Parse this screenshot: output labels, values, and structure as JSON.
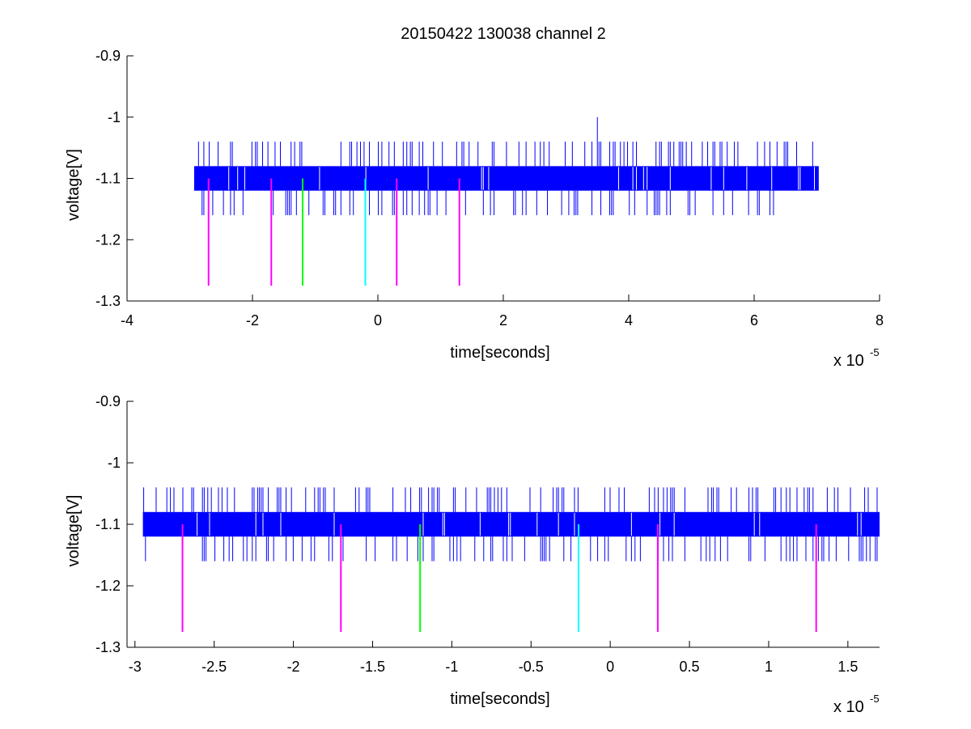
{
  "figure": {
    "title": "20150422 130038 channel 2"
  },
  "chart_data": [
    {
      "type": "line",
      "title": "20150422 130038 channel 2",
      "xlabel": "time[seconds]",
      "ylabel": "voltage[V]",
      "x_multiplier": "x 10",
      "x_multiplier_exp": "-5",
      "xlim": [
        -4,
        8
      ],
      "ylim": [
        -1.3,
        -0.9
      ],
      "xticks": [
        -4,
        -2,
        0,
        2,
        4,
        6,
        8
      ],
      "xtick_labels": [
        "-4",
        "-2",
        "0",
        "2",
        "4",
        "6",
        "8"
      ],
      "yticks": [
        -1.3,
        -1.2,
        -1.1,
        -1.0,
        -0.9
      ],
      "ytick_labels": [
        "-1.3",
        "-1.2",
        "-1.1",
        "-1",
        "-0.9"
      ],
      "grid": false,
      "series": [
        {
          "color": "#0000ff",
          "x_range": [
            -2.93,
            7.03
          ],
          "band": [
            -1.12,
            -1.08
          ],
          "spikes_up": [
            -1.04,
            -1.0
          ],
          "spikes_down": [
            -1.16
          ],
          "peak": {
            "x": 3.5,
            "y": -1.0
          }
        }
      ],
      "markers": [
        {
          "x": -2.7,
          "y_top": -1.1,
          "y_bottom": -1.275,
          "color": "#ff00ff"
        },
        {
          "x": -1.7,
          "y_top": -1.1,
          "y_bottom": -1.275,
          "color": "#ff00ff"
        },
        {
          "x": -1.2,
          "y_top": -1.1,
          "y_bottom": -1.275,
          "color": "#00ff00"
        },
        {
          "x": -0.2,
          "y_top": -1.1,
          "y_bottom": -1.275,
          "color": "#00ffff"
        },
        {
          "x": 0.3,
          "y_top": -1.1,
          "y_bottom": -1.275,
          "color": "#ff00ff"
        },
        {
          "x": 1.3,
          "y_top": -1.1,
          "y_bottom": -1.275,
          "color": "#ff00ff"
        }
      ]
    },
    {
      "type": "line",
      "title": "",
      "xlabel": "time[seconds]",
      "ylabel": "voltage[V]",
      "x_multiplier": "x 10",
      "x_multiplier_exp": "-5",
      "xlim": [
        -3.05,
        1.7
      ],
      "ylim": [
        -1.3,
        -0.9
      ],
      "xticks": [
        -3,
        -2.5,
        -2,
        -1.5,
        -1,
        -0.5,
        0,
        0.5,
        1,
        1.5
      ],
      "xtick_labels": [
        "-3",
        "-2.5",
        "-2",
        "-1.5",
        "-1",
        "-0.5",
        "0",
        "0.5",
        "1",
        "1.5"
      ],
      "yticks": [
        -1.3,
        -1.2,
        -1.1,
        -1.0,
        -0.9
      ],
      "ytick_labels": [
        "-1.3",
        "-1.2",
        "-1.1",
        "-1",
        "-0.9"
      ],
      "grid": false,
      "series": [
        {
          "color": "#0000ff",
          "x_range": [
            -2.95,
            1.7
          ],
          "band": [
            -1.12,
            -1.08
          ],
          "spikes_up": [
            -1.04
          ],
          "spikes_down": [
            -1.16
          ]
        }
      ],
      "markers": [
        {
          "x": -2.7,
          "y_top": -1.1,
          "y_bottom": -1.275,
          "color": "#ff00ff"
        },
        {
          "x": -1.7,
          "y_top": -1.1,
          "y_bottom": -1.275,
          "color": "#ff00ff"
        },
        {
          "x": -1.2,
          "y_top": -1.1,
          "y_bottom": -1.275,
          "color": "#00ff00"
        },
        {
          "x": -0.2,
          "y_top": -1.1,
          "y_bottom": -1.275,
          "color": "#00ffff"
        },
        {
          "x": 0.3,
          "y_top": -1.1,
          "y_bottom": -1.275,
          "color": "#ff00ff"
        },
        {
          "x": 1.3,
          "y_top": -1.1,
          "y_bottom": -1.275,
          "color": "#ff00ff"
        }
      ]
    }
  ]
}
